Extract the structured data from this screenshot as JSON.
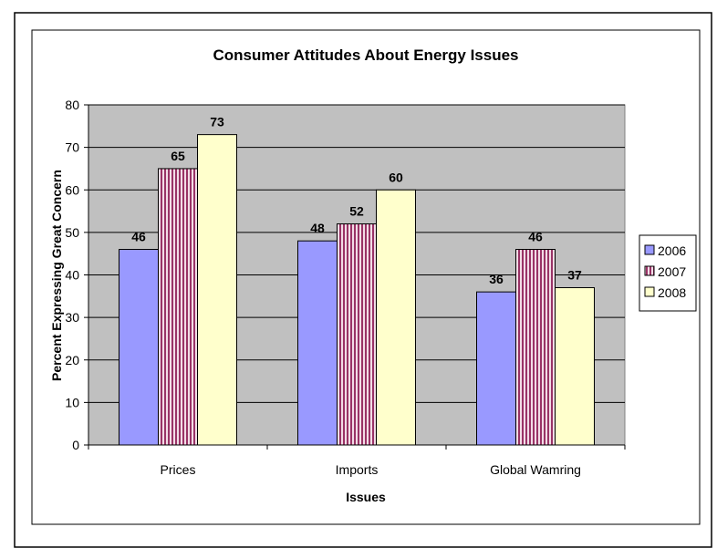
{
  "chart_data": {
    "type": "bar",
    "title": "Consumer Attitudes About Energy Issues",
    "xlabel": "Issues",
    "ylabel": "Percent Expressing Great Concern",
    "categories": [
      "Prices",
      "Imports",
      "Global Wamring"
    ],
    "series": [
      {
        "name": "2006",
        "values": [
          46,
          48,
          36
        ],
        "color": "#9999ff",
        "pattern": "solid"
      },
      {
        "name": "2007",
        "values": [
          65,
          52,
          46
        ],
        "color": "#993366",
        "pattern": "vertical-stripes"
      },
      {
        "name": "2008",
        "values": [
          73,
          60,
          37
        ],
        "color": "#ffffcc",
        "pattern": "solid"
      }
    ],
    "ylim": [
      0,
      80
    ],
    "yticks": [
      0,
      10,
      20,
      30,
      40,
      50,
      60,
      70,
      80
    ],
    "grid": true,
    "plot_background": "#c0c0c0",
    "legend_position": "right"
  }
}
